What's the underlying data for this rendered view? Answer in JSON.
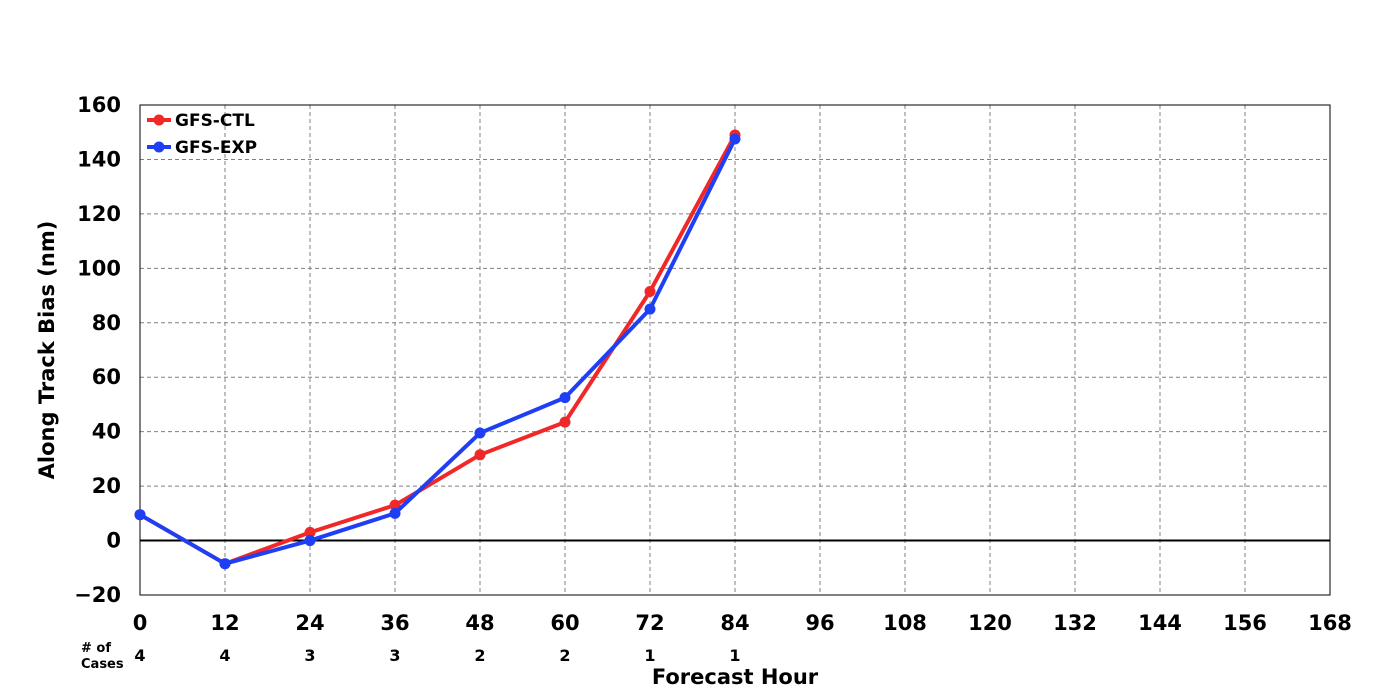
{
  "chart_data": {
    "type": "line",
    "title": "",
    "xlabel": "Forecast Hour",
    "ylabel": "Along Track Bias (nm)",
    "xlim": [
      0,
      168
    ],
    "ylim": [
      -20,
      160
    ],
    "x_ticks": [
      0,
      12,
      24,
      36,
      48,
      60,
      72,
      84,
      96,
      108,
      120,
      132,
      144,
      156,
      168
    ],
    "y_ticks": [
      -20,
      0,
      20,
      40,
      60,
      80,
      100,
      120,
      140,
      160
    ],
    "x_tick_labels": [
      "0",
      "12",
      "24",
      "36",
      "48",
      "60",
      "72",
      "84",
      "96",
      "108",
      "120",
      "132",
      "144",
      "156",
      "168"
    ],
    "y_tick_labels": [
      "−20",
      "0",
      "20",
      "40",
      "60",
      "80",
      "100",
      "120",
      "140",
      "160"
    ],
    "grid": true,
    "legend_position": "top-left",
    "series": [
      {
        "name": "GFS-CTL",
        "color": "#f02828",
        "x": [
          0,
          12,
          24,
          36,
          48,
          60,
          72,
          84
        ],
        "values": [
          9.5,
          -8.5,
          3,
          13,
          31.5,
          43.5,
          91.5,
          149
        ]
      },
      {
        "name": "GFS-EXP",
        "color": "#1f3ff5",
        "x": [
          0,
          12,
          24,
          36,
          48,
          60,
          72,
          84
        ],
        "values": [
          9.5,
          -8.5,
          0,
          10,
          39.5,
          52.5,
          85,
          147.5
        ]
      }
    ],
    "cases": {
      "label_line1": "# of",
      "label_line2": "Cases",
      "x": [
        0,
        12,
        24,
        36,
        48,
        60,
        72,
        84
      ],
      "values": [
        "4",
        "4",
        "3",
        "3",
        "2",
        "2",
        "1",
        "1"
      ]
    }
  }
}
